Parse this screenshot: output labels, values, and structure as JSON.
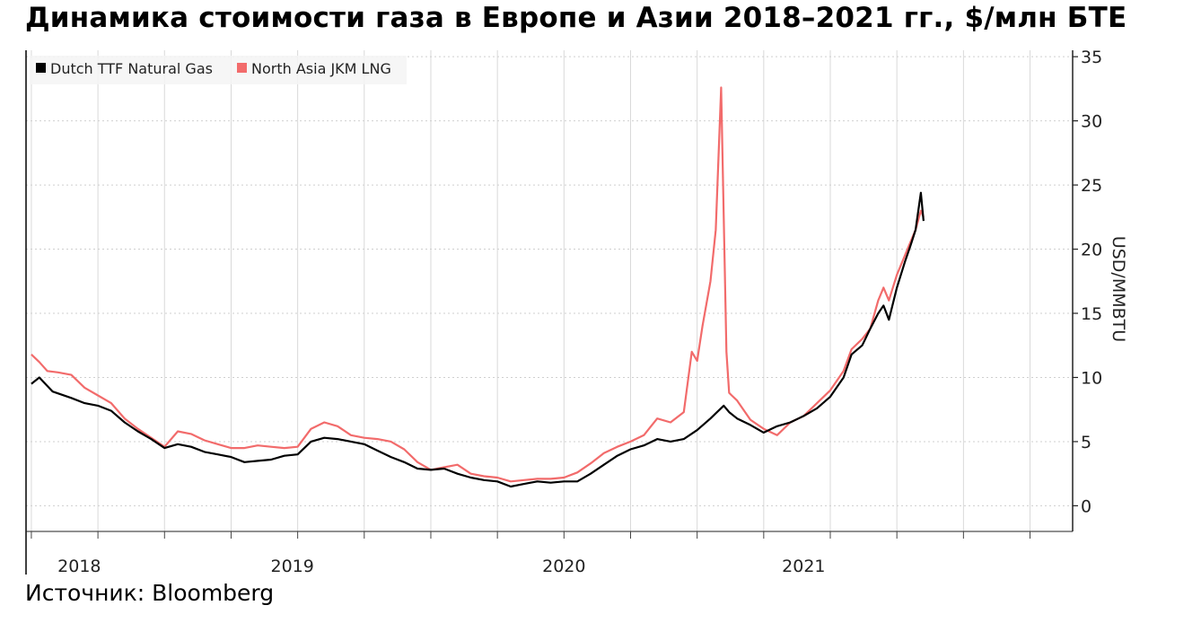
{
  "title": "Динамика стоимости газа в Европе и Азии 2018–2021 гг., $/млн БТЕ",
  "source": "Источник: Bloomberg",
  "chart_data": {
    "type": "line",
    "ylabel": "USD/MMBTU",
    "xlabel": "",
    "ylim": [
      -2,
      35.5
    ],
    "xlim": [
      2017.98,
      2021.91
    ],
    "y_ticks": [
      "0",
      "5",
      "10",
      "15",
      "20",
      "25",
      "30",
      "35"
    ],
    "y_tick_values": [
      0,
      5,
      10,
      15,
      20,
      25,
      30,
      35
    ],
    "x_ticks": [
      "2018",
      "2019",
      "2020",
      "2021"
    ],
    "x_tick_values": [
      2018.18,
      2018.98,
      2020.0,
      2020.9
    ],
    "grid": true,
    "legend_position": "top-left",
    "series": [
      {
        "name": "Dutch TTF Natural Gas",
        "color": "#000000",
        "x": [
          2018.0,
          2018.03,
          2018.08,
          2018.15,
          2018.2,
          2018.25,
          2018.3,
          2018.35,
          2018.4,
          2018.45,
          2018.5,
          2018.55,
          2018.6,
          2018.65,
          2018.7,
          2018.75,
          2018.8,
          2018.85,
          2018.9,
          2018.95,
          2019.0,
          2019.05,
          2019.1,
          2019.15,
          2019.2,
          2019.25,
          2019.3,
          2019.35,
          2019.4,
          2019.45,
          2019.5,
          2019.55,
          2019.6,
          2019.65,
          2019.7,
          2019.75,
          2019.8,
          2019.85,
          2019.9,
          2019.95,
          2020.0,
          2020.05,
          2020.1,
          2020.15,
          2020.2,
          2020.25,
          2020.3,
          2020.35,
          2020.4,
          2020.45,
          2020.5,
          2020.55,
          2020.58,
          2020.6,
          2020.62,
          2020.65,
          2020.7,
          2020.75,
          2020.8,
          2020.85,
          2020.9,
          2020.95,
          2021.0,
          2021.05,
          2021.08,
          2021.12,
          2021.15,
          2021.18,
          2021.2,
          2021.22,
          2021.25,
          2021.28,
          2021.3,
          2021.32,
          2021.34,
          2021.35
        ],
        "values": [
          9.5,
          10.0,
          8.9,
          8.4,
          8.0,
          7.8,
          7.4,
          6.5,
          5.8,
          5.2,
          4.5,
          4.8,
          4.6,
          4.2,
          4.0,
          3.8,
          3.4,
          3.5,
          3.6,
          3.9,
          4.0,
          5.0,
          5.3,
          5.2,
          5.0,
          4.8,
          4.3,
          3.8,
          3.4,
          2.9,
          2.8,
          2.9,
          2.5,
          2.2,
          2.0,
          1.9,
          1.5,
          1.7,
          1.9,
          1.8,
          1.9,
          1.9,
          2.5,
          3.2,
          3.9,
          4.4,
          4.7,
          5.2,
          5.0,
          5.2,
          5.9,
          6.8,
          7.4,
          7.8,
          7.3,
          6.8,
          6.3,
          5.7,
          6.2,
          6.5,
          7.0,
          7.6,
          8.5,
          10.0,
          11.8,
          12.5,
          13.8,
          15.0,
          15.6,
          14.5,
          17.0,
          19.0,
          20.2,
          21.5,
          24.4,
          22.2
        ]
      },
      {
        "name": "North Asia JKM LNG",
        "color": "#f26b6b",
        "x": [
          2018.0,
          2018.03,
          2018.06,
          2018.1,
          2018.15,
          2018.2,
          2018.25,
          2018.3,
          2018.35,
          2018.4,
          2018.45,
          2018.5,
          2018.55,
          2018.6,
          2018.65,
          2018.7,
          2018.75,
          2018.8,
          2018.85,
          2018.9,
          2018.95,
          2019.0,
          2019.05,
          2019.1,
          2019.15,
          2019.2,
          2019.25,
          2019.3,
          2019.35,
          2019.4,
          2019.45,
          2019.5,
          2019.55,
          2019.6,
          2019.65,
          2019.7,
          2019.75,
          2019.8,
          2019.85,
          2019.9,
          2019.95,
          2020.0,
          2020.05,
          2020.1,
          2020.15,
          2020.2,
          2020.25,
          2020.3,
          2020.35,
          2020.4,
          2020.45,
          2020.48,
          2020.5,
          2020.52,
          2020.55,
          2020.57,
          2020.59,
          2020.61,
          2020.62,
          2020.63,
          2020.65,
          2020.7,
          2020.75,
          2020.8,
          2020.85,
          2020.9,
          2020.95,
          2021.0,
          2021.05,
          2021.08,
          2021.12,
          2021.15,
          2021.18,
          2021.2,
          2021.22,
          2021.25,
          2021.28,
          2021.3,
          2021.32,
          2021.34,
          2021.35
        ],
        "values": [
          11.8,
          11.2,
          10.5,
          10.4,
          10.2,
          9.2,
          8.6,
          8.0,
          6.8,
          6.0,
          5.3,
          4.6,
          5.8,
          5.6,
          5.1,
          4.8,
          4.5,
          4.5,
          4.7,
          4.6,
          4.5,
          4.6,
          6.0,
          6.5,
          6.2,
          5.5,
          5.3,
          5.2,
          5.0,
          4.4,
          3.4,
          2.8,
          3.0,
          3.2,
          2.5,
          2.3,
          2.2,
          1.9,
          2.0,
          2.1,
          2.1,
          2.2,
          2.6,
          3.3,
          4.1,
          4.6,
          5.0,
          5.5,
          6.8,
          6.5,
          7.3,
          12.0,
          11.3,
          14.0,
          17.5,
          21.5,
          32.6,
          12.0,
          8.8,
          8.6,
          8.2,
          6.7,
          6.0,
          5.5,
          6.5,
          7.0,
          8.0,
          9.0,
          10.5,
          12.2,
          13.0,
          13.8,
          16.0,
          17.0,
          16.0,
          18.0,
          19.5,
          20.5,
          21.5,
          23.0,
          22.5
        ]
      }
    ]
  }
}
